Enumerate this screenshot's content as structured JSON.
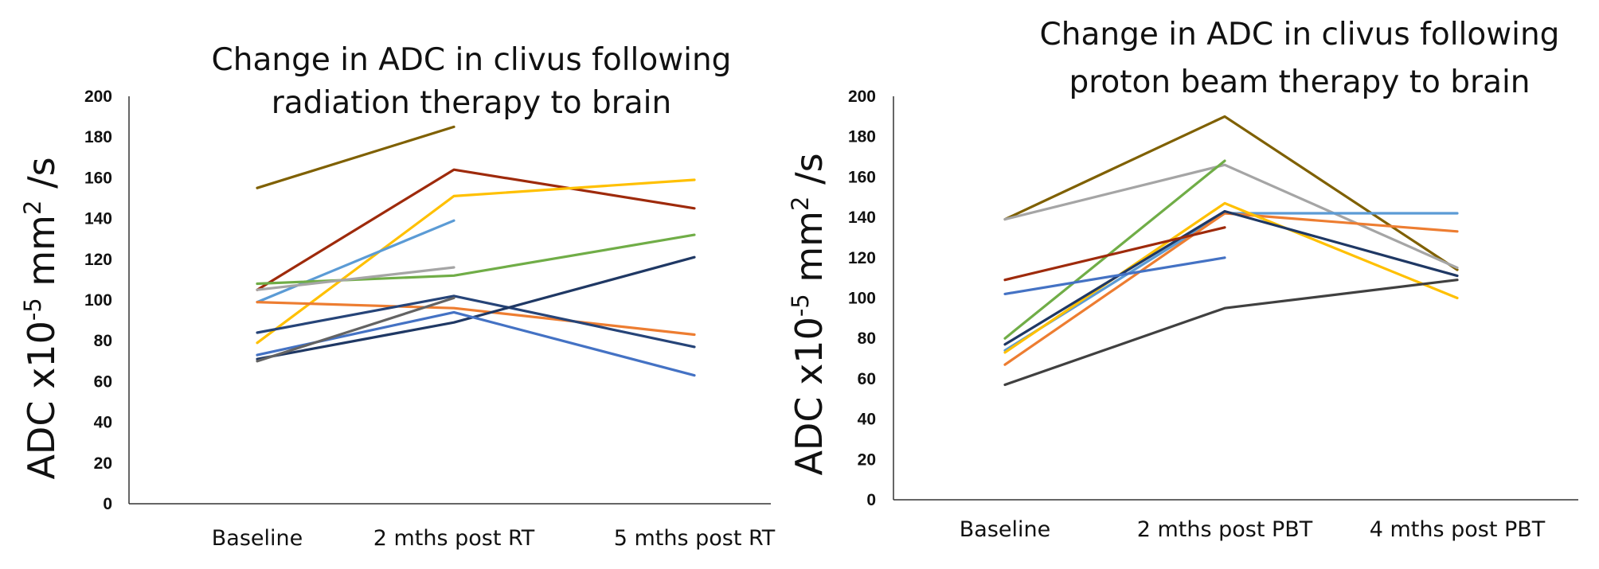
{
  "chart_data": [
    {
      "type": "line",
      "title_lines": [
        "Change in ADC in clivus following",
        "radiation therapy to brain"
      ],
      "ylabel": {
        "prefix": "ADC x10",
        "exp1": "-5",
        "mid": " mm",
        "exp2": "2",
        "suffix": " /s"
      },
      "xlabel": "",
      "categories": [
        "Baseline",
        "2 mths post RT",
        "5 mths post RT"
      ],
      "ylim": [
        0,
        200
      ],
      "yticks": [
        0,
        20,
        40,
        60,
        80,
        100,
        120,
        140,
        160,
        180,
        200
      ],
      "legend": "none",
      "series": [
        {
          "name": "s1",
          "color": "#7F6000",
          "values": [
            155,
            185,
            null
          ]
        },
        {
          "name": "s2",
          "color": "#9E2A0B",
          "values": [
            105,
            164,
            145
          ]
        },
        {
          "name": "s3",
          "color": "#FFC000",
          "values": [
            79,
            151,
            159
          ]
        },
        {
          "name": "s4",
          "color": "#5B9BD5",
          "values": [
            99,
            139,
            null
          ]
        },
        {
          "name": "s5",
          "color": "#70AD47",
          "values": [
            108,
            112,
            132
          ]
        },
        {
          "name": "s6",
          "color": "#A5A5A5",
          "values": [
            105,
            116,
            null
          ]
        },
        {
          "name": "s7",
          "color": "#ED7D31",
          "values": [
            99,
            96,
            83
          ]
        },
        {
          "name": "s8",
          "color": "#264478",
          "values": [
            84,
            102,
            77
          ]
        },
        {
          "name": "s9",
          "color": "#1F3864",
          "values": [
            71,
            89,
            121
          ]
        },
        {
          "name": "s10",
          "color": "#4472C4",
          "values": [
            73,
            94,
            63
          ]
        },
        {
          "name": "s11",
          "color": "#636363",
          "values": [
            70,
            101,
            null
          ]
        }
      ]
    },
    {
      "type": "line",
      "title_lines": [
        "Change in ADC in clivus following",
        "proton beam therapy to brain"
      ],
      "ylabel": {
        "prefix": "ADC x10",
        "exp1": "-5",
        "mid": " mm",
        "exp2": "2",
        "suffix": " /s"
      },
      "xlabel": "",
      "categories": [
        "Baseline",
        "2 mths post PBT",
        "4 mths post PBT"
      ],
      "ylim": [
        0,
        200
      ],
      "yticks": [
        0,
        20,
        40,
        60,
        80,
        100,
        120,
        140,
        160,
        180,
        200
      ],
      "legend": "none",
      "series": [
        {
          "name": "s1",
          "color": "#7F6000",
          "values": [
            139,
            190,
            114
          ]
        },
        {
          "name": "s2",
          "color": "#A5A5A5",
          "values": [
            139,
            166,
            115
          ]
        },
        {
          "name": "s3",
          "color": "#70AD47",
          "values": [
            80,
            168,
            null
          ]
        },
        {
          "name": "s4",
          "color": "#5B9BD5",
          "values": [
            74,
            142,
            142
          ]
        },
        {
          "name": "s5",
          "color": "#ED7D31",
          "values": [
            67,
            142,
            133
          ]
        },
        {
          "name": "s6",
          "color": "#FFC000",
          "values": [
            73,
            147,
            100
          ]
        },
        {
          "name": "s7",
          "color": "#1F3864",
          "values": [
            77,
            143,
            111
          ]
        },
        {
          "name": "s8",
          "color": "#9E2A0B",
          "values": [
            109,
            135,
            null
          ]
        },
        {
          "name": "s9",
          "color": "#4472C4",
          "values": [
            102,
            120,
            null
          ]
        },
        {
          "name": "s10",
          "color": "#404040",
          "values": [
            57,
            95,
            109
          ]
        }
      ]
    }
  ]
}
